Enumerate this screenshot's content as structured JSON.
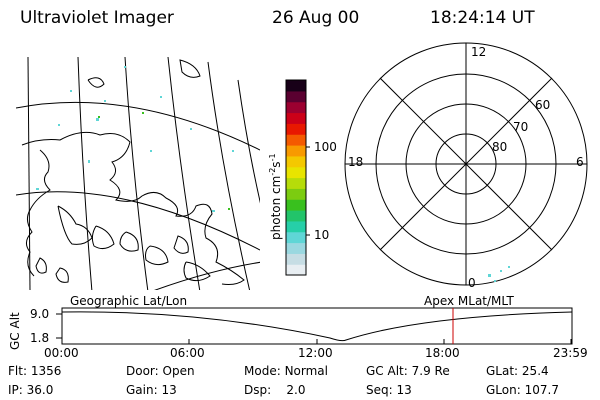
{
  "header": {
    "instrument": "Ultraviolet Imager",
    "date": "26 Aug 00",
    "time": "18:24:14 UT"
  },
  "colorbar": {
    "unit_label": "photon cm",
    "unit_sup1": "-2",
    "unit_s": "s",
    "unit_sup2": "-1",
    "ticks": [
      {
        "label": "100",
        "value": 100
      },
      {
        "label": "10",
        "value": 10
      }
    ],
    "colors": [
      "#e8eef2",
      "#c6dde4",
      "#9ad8e0",
      "#5fd6d6",
      "#26cfa8",
      "#22c46a",
      "#39c01e",
      "#7ccc10",
      "#b6dc0a",
      "#e8e400",
      "#f4c800",
      "#f89a00",
      "#f45a00",
      "#e81800",
      "#cc0018",
      "#9c0030",
      "#5a0030",
      "#180018"
    ]
  },
  "polar": {
    "mlt_labels": {
      "top": "12",
      "left": "18",
      "right": "6",
      "bottom": "0"
    },
    "lat_labels": [
      "60",
      "70",
      "80"
    ]
  },
  "map": {
    "label": "Geographic Lat/Lon"
  },
  "timeline": {
    "right_label": "Apex MLat/MLT",
    "axis_title": "GC Alt",
    "y_ticks": [
      "9.0",
      "1.8"
    ],
    "x_ticks": [
      "00:00",
      "06:00",
      "12:00",
      "18:00",
      "23:59"
    ],
    "current_time_hours": 18.4,
    "current_marker_color": "#cc0000"
  },
  "footer": {
    "rows": [
      [
        {
          "label": "Flt:",
          "value": "1356"
        },
        {
          "label": "Door:",
          "value": "Open"
        },
        {
          "label": "Mode:",
          "value": "Normal"
        },
        {
          "label": "GC Alt:",
          "value": "7.9 Re"
        },
        {
          "label": "GLat:",
          "value": "25.4"
        }
      ],
      [
        {
          "label": "IP:",
          "value": "36.0"
        },
        {
          "label": "Gain:",
          "value": "13"
        },
        {
          "label": "Dsp:",
          "value": "2.0"
        },
        {
          "label": "Seq:",
          "value": "13"
        },
        {
          "label": "GLon:",
          "value": "107.7"
        }
      ]
    ]
  }
}
